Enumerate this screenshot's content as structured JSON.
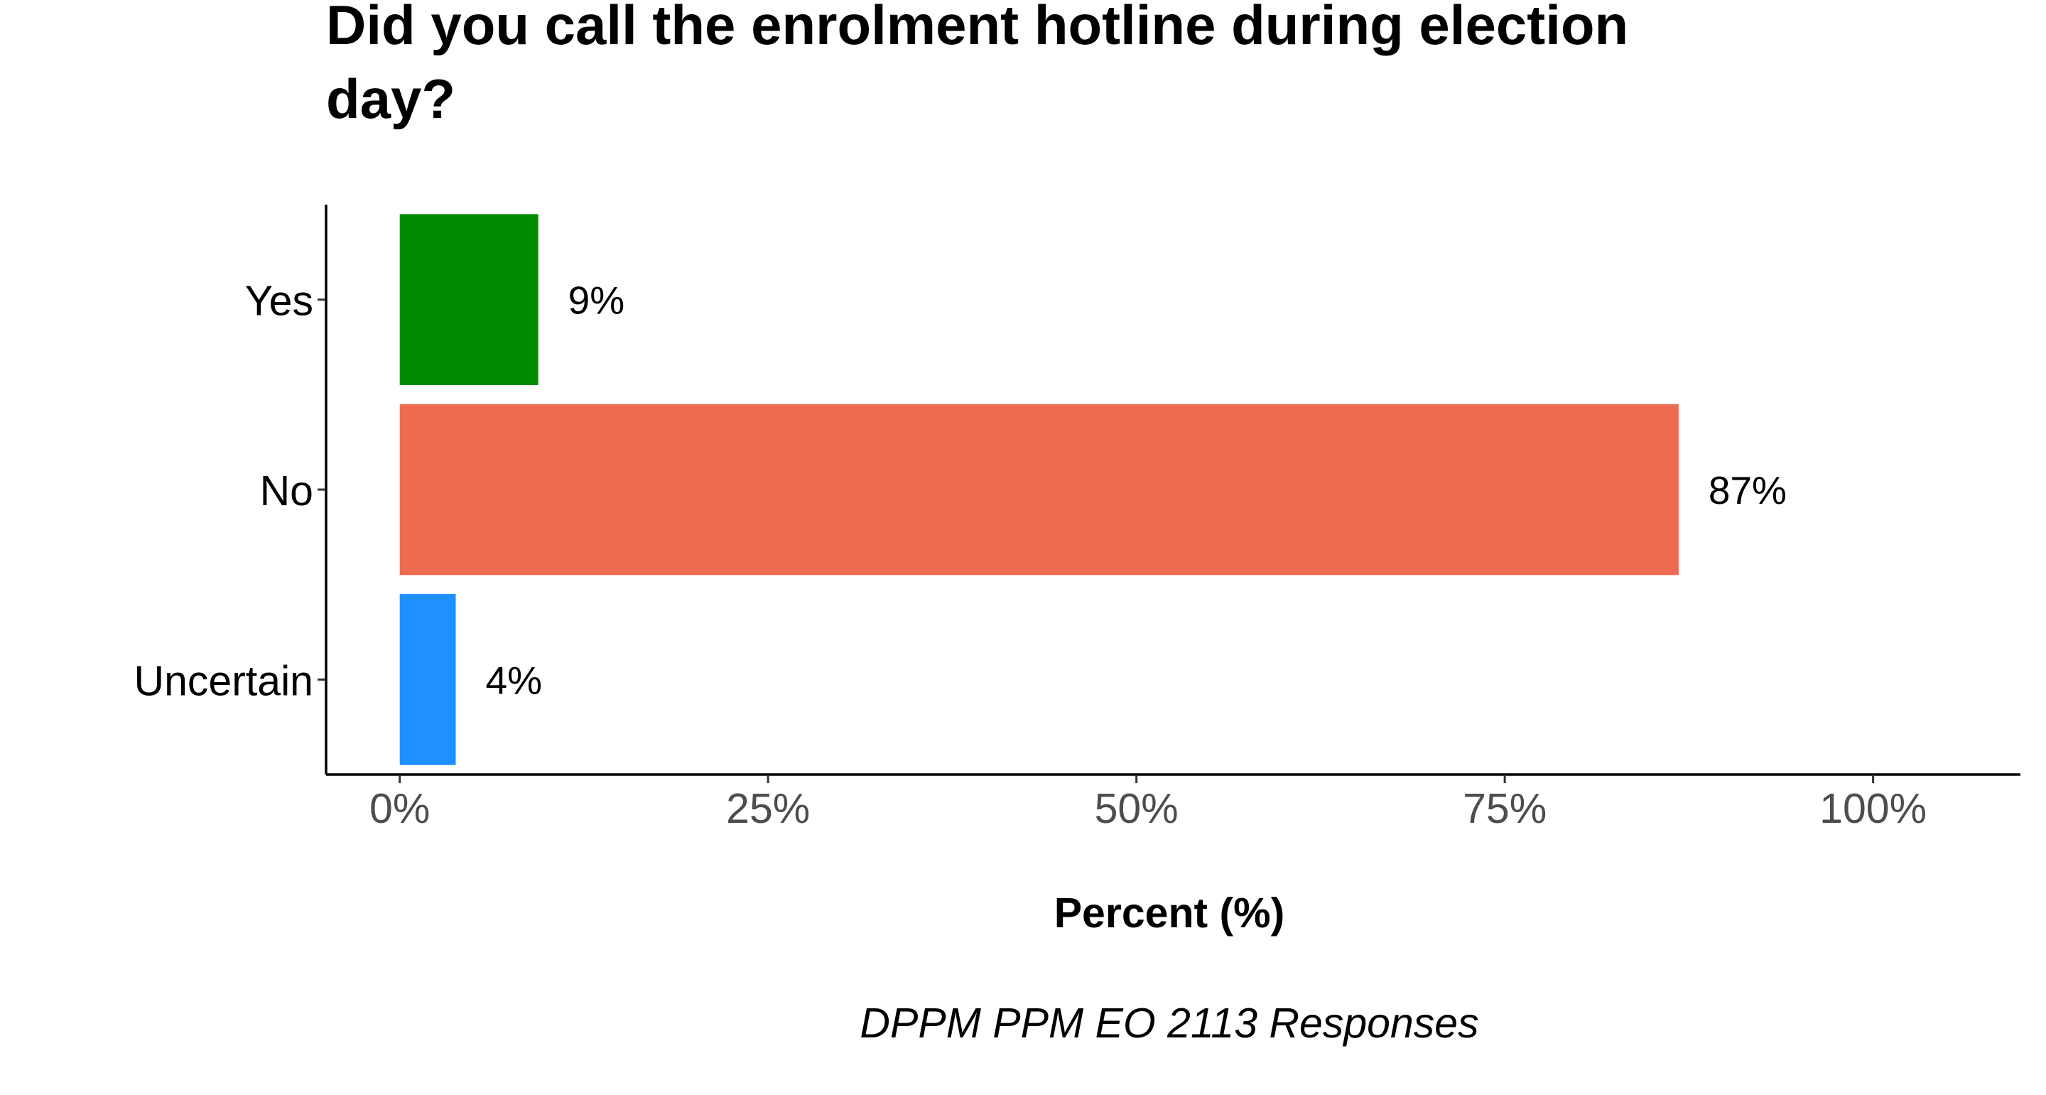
{
  "chart_data": {
    "type": "bar",
    "orientation": "horizontal",
    "title": "Did you call the enrolment hotline during election day?",
    "title_lines": [
      "Did you call the enrolment hotline during election",
      "day?"
    ],
    "xlabel": "Percent (%)",
    "caption": "DPPM PPM EO 2113 Responses",
    "categories": [
      "Yes",
      "No",
      "Uncertain"
    ],
    "values": [
      9.4,
      86.8,
      3.8
    ],
    "data_labels": [
      "9%",
      "87%",
      "4%"
    ],
    "colors": [
      "#008B00",
      "#EE6A50",
      "#1E90FF"
    ],
    "xlim": [
      -5,
      110
    ],
    "x_ticks": [
      0,
      25,
      50,
      75,
      100
    ],
    "x_tick_labels": [
      "0%",
      "25%",
      "50%",
      "75%",
      "100%"
    ],
    "grid": false,
    "legend": "none"
  }
}
